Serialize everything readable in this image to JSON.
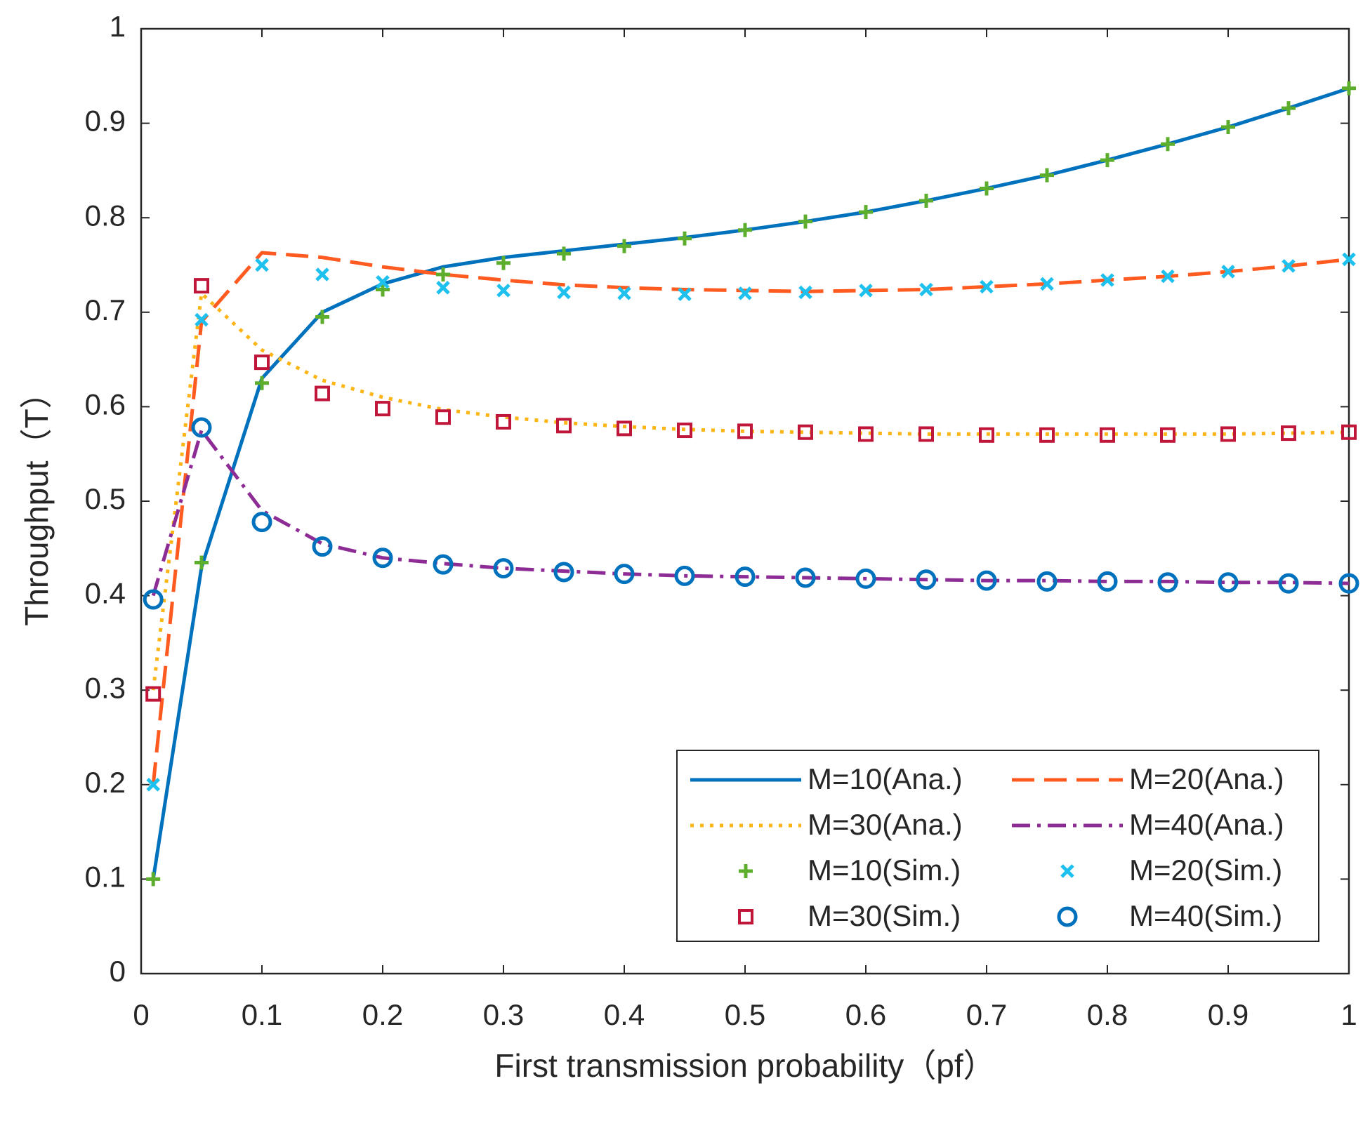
{
  "chart_data": {
    "type": "line",
    "xlabel": "First transmission probability（pf）",
    "ylabel": "Throughput（T）",
    "x": [
      0.01,
      0.05,
      0.1,
      0.15,
      0.2,
      0.25,
      0.3,
      0.35,
      0.4,
      0.45,
      0.5,
      0.55,
      0.6,
      0.65,
      0.7,
      0.75,
      0.8,
      0.85,
      0.9,
      0.95,
      1.0
    ],
    "xlim": [
      0,
      1
    ],
    "xticks": [
      0,
      0.1,
      0.2,
      0.3,
      0.4,
      0.5,
      0.6,
      0.7,
      0.8,
      0.9,
      1
    ],
    "ylim": [
      0,
      1
    ],
    "yticks": [
      0,
      0.1,
      0.2,
      0.3,
      0.4,
      0.5,
      0.6,
      0.7,
      0.8,
      0.9,
      1
    ],
    "legend": "lower right",
    "series": [
      {
        "name": "M=10(Ana.)",
        "color": "#0072bd",
        "style": "solid",
        "values": [
          0.1,
          0.43,
          0.63,
          0.7,
          0.73,
          0.748,
          0.758,
          0.765,
          0.772,
          0.779,
          0.787,
          0.796,
          0.806,
          0.818,
          0.831,
          0.845,
          0.861,
          0.878,
          0.896,
          0.916,
          0.937
        ]
      },
      {
        "name": "M=20(Ana.)",
        "color": "#ff5a1f",
        "style": "dashed",
        "values": [
          0.2,
          0.69,
          0.763,
          0.758,
          0.748,
          0.74,
          0.734,
          0.729,
          0.726,
          0.724,
          0.723,
          0.722,
          0.723,
          0.724,
          0.727,
          0.73,
          0.734,
          0.738,
          0.743,
          0.749,
          0.756
        ]
      },
      {
        "name": "M=30(Ana.)",
        "color": "#fdb515",
        "style": "dotted",
        "values": [
          0.3,
          0.72,
          0.66,
          0.628,
          0.61,
          0.597,
          0.589,
          0.583,
          0.579,
          0.576,
          0.574,
          0.573,
          0.572,
          0.571,
          0.571,
          0.571,
          0.571,
          0.571,
          0.571,
          0.572,
          0.573
        ]
      },
      {
        "name": "M=40(Ana.)",
        "color": "#8e2c96",
        "style": "dashdot",
        "values": [
          0.4,
          0.575,
          0.49,
          0.455,
          0.44,
          0.434,
          0.429,
          0.426,
          0.423,
          0.421,
          0.42,
          0.419,
          0.418,
          0.417,
          0.416,
          0.416,
          0.415,
          0.415,
          0.414,
          0.414,
          0.413
        ]
      },
      {
        "name": "M=10(Sim.)",
        "color": "#5eae2e",
        "marker": "plus",
        "values": [
          0.1,
          0.435,
          0.625,
          0.695,
          0.724,
          0.74,
          0.752,
          0.762,
          0.77,
          0.778,
          0.787,
          0.796,
          0.806,
          0.818,
          0.831,
          0.845,
          0.861,
          0.878,
          0.896,
          0.916,
          0.937
        ]
      },
      {
        "name": "M=20(Sim.)",
        "color": "#1ec0ee",
        "marker": "x",
        "values": [
          0.2,
          0.692,
          0.75,
          0.74,
          0.732,
          0.726,
          0.723,
          0.721,
          0.72,
          0.719,
          0.72,
          0.721,
          0.723,
          0.724,
          0.727,
          0.73,
          0.734,
          0.738,
          0.743,
          0.749,
          0.756
        ]
      },
      {
        "name": "M=30(Sim.)",
        "color": "#c0163a",
        "marker": "square",
        "values": [
          0.296,
          0.728,
          0.647,
          0.614,
          0.598,
          0.589,
          0.584,
          0.58,
          0.577,
          0.575,
          0.574,
          0.573,
          0.571,
          0.571,
          0.57,
          0.57,
          0.57,
          0.57,
          0.571,
          0.572,
          0.573
        ]
      },
      {
        "name": "M=40(Sim.)",
        "color": "#0072bd",
        "marker": "circle",
        "values": [
          0.396,
          0.578,
          0.478,
          0.452,
          0.44,
          0.433,
          0.429,
          0.425,
          0.423,
          0.421,
          0.42,
          0.419,
          0.418,
          0.417,
          0.416,
          0.415,
          0.415,
          0.414,
          0.414,
          0.413,
          0.413
        ]
      }
    ]
  }
}
